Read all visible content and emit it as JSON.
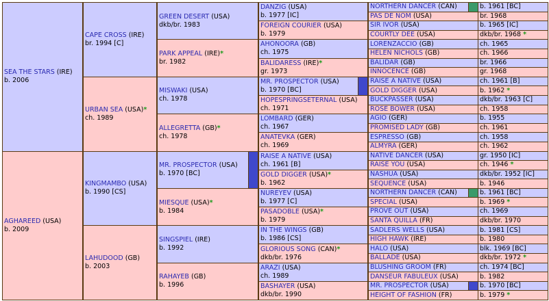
{
  "pedigree": {
    "gen1": [
      {
        "name": "SEA THE STARS",
        "country": "(IRE)",
        "info": "b. 2006"
      },
      {
        "name": "AGHAREED",
        "country": "(USA)",
        "info": "b. 2009"
      }
    ],
    "gen2": [
      {
        "name": "CAPE CROSS",
        "country": "(IRE)",
        "info": "br. 1994 [C]"
      },
      {
        "name": "URBAN SEA",
        "country": "(USA)",
        "mark": "*",
        "info": "ch. 1989"
      },
      {
        "name": "KINGMAMBO",
        "country": "(USA)",
        "info": "b. 1990 [CS]"
      },
      {
        "name": "LAHUDOOD",
        "country": "(GB)",
        "info": "b. 2003"
      }
    ],
    "gen3": [
      {
        "name": "GREEN DESERT",
        "country": "(USA)",
        "info": "dkb/br. 1983"
      },
      {
        "name": "PARK APPEAL",
        "country": "(IRE)",
        "mark": "*",
        "info": "br. 1982"
      },
      {
        "name": "MISWAKI",
        "country": "(USA)",
        "info": "ch. 1978"
      },
      {
        "name": "ALLEGRETTA",
        "country": "(GB)",
        "mark": "*",
        "info": "ch. 1978"
      },
      {
        "name": "MR. PROSPECTOR",
        "country": "(USA)",
        "info": "b. 1970 [BC]",
        "marker": "#3f48cc"
      },
      {
        "name": "MIESQUE",
        "country": "(USA)",
        "mark": "*",
        "info": "b. 1984"
      },
      {
        "name": "SINGSPIEL",
        "country": "(IRE)",
        "info": "b. 1992"
      },
      {
        "name": "RAHAYEB",
        "country": "(GB)",
        "info": "b. 1996"
      }
    ],
    "gen4": [
      {
        "name": "DANZIG",
        "country": "(USA)",
        "info": "b. 1977 [IC]"
      },
      {
        "name": "FOREIGN COURIER",
        "country": "(USA)",
        "info": "b. 1979"
      },
      {
        "name": "AHONOORA",
        "country": "(GB)",
        "info": "ch. 1975"
      },
      {
        "name": "BALIDARESS",
        "country": "(IRE)",
        "mark": "*",
        "info": "gr. 1973"
      },
      {
        "name": "MR. PROSPECTOR",
        "country": "(USA)",
        "info": "b. 1970 [BC]",
        "marker": "#3f48cc"
      },
      {
        "name": "HOPESPRINGSETERNAL",
        "country": "(USA)",
        "info": "ch. 1971"
      },
      {
        "name": "LOMBARD",
        "country": "(GER)",
        "info": "ch. 1967"
      },
      {
        "name": "ANATEVKA",
        "country": "(GER)",
        "info": "ch. 1969"
      },
      {
        "name": "RAISE A NATIVE",
        "country": "(USA)",
        "info": "ch. 1961 [B]"
      },
      {
        "name": "GOLD DIGGER",
        "country": "(USA)",
        "mark": "*",
        "info": "b. 1962"
      },
      {
        "name": "NUREYEV",
        "country": "(USA)",
        "info": "b. 1977 [C]"
      },
      {
        "name": "PASADOBLE",
        "country": "(USA)",
        "mark": "*",
        "info": "b. 1979"
      },
      {
        "name": "IN THE WINGS",
        "country": "(GB)",
        "info": "b. 1986 [CS]"
      },
      {
        "name": "GLORIOUS SONG",
        "country": "(CAN)",
        "mark": "*",
        "info": "dkb/br. 1976"
      },
      {
        "name": "ARAZI",
        "country": "(USA)",
        "info": "ch. 1989"
      },
      {
        "name": "BASHAYER",
        "country": "(USA)",
        "info": "dkb/br. 1990"
      }
    ],
    "gen5": [
      {
        "name": "NORTHERN DANCER",
        "country": "(CAN)",
        "info": "b. 1961 [BC]",
        "marker": "#3a9a6a"
      },
      {
        "name": "PAS DE NOM",
        "country": "(USA)",
        "info": "br. 1968"
      },
      {
        "name": "SIR IVOR",
        "country": "(USA)",
        "info": "b. 1965 [IC]"
      },
      {
        "name": "COURTLY DEE",
        "country": "(USA)",
        "info": "dkb/br. 1968",
        "mark": "*"
      },
      {
        "name": "LORENZACCIO",
        "country": "(GB)",
        "info": "ch. 1965"
      },
      {
        "name": "HELEN NICHOLS",
        "country": "(GB)",
        "info": "ch. 1966"
      },
      {
        "name": "BALIDAR",
        "country": "(GB)",
        "info": "br. 1966"
      },
      {
        "name": "INNOCENCE",
        "country": "(GB)",
        "info": "gr. 1968"
      },
      {
        "name": "RAISE A NATIVE",
        "country": "(USA)",
        "info": "ch. 1961 [B]"
      },
      {
        "name": "GOLD DIGGER",
        "country": "(USA)",
        "info": "b. 1962",
        "mark": "*"
      },
      {
        "name": "BUCKPASSER",
        "country": "(USA)",
        "info": "dkb/br. 1963 [C]"
      },
      {
        "name": "ROSE BOWER",
        "country": "(USA)",
        "info": "ch. 1958"
      },
      {
        "name": "AGIO",
        "country": "(GER)",
        "info": "b. 1955"
      },
      {
        "name": "PROMISED LADY",
        "country": "(GB)",
        "info": "ch. 1961"
      },
      {
        "name": "ESPRESSO",
        "country": "(GB)",
        "info": "ch. 1958"
      },
      {
        "name": "ALMYRA",
        "country": "(GER)",
        "info": "ch. 1962"
      },
      {
        "name": "NATIVE DANCER",
        "country": "(USA)",
        "info": "gr. 1950 [IC]"
      },
      {
        "name": "RAISE YOU",
        "country": "(USA)",
        "info": "ch. 1946",
        "mark": "*"
      },
      {
        "name": "NASHUA",
        "country": "(USA)",
        "info": "dkb/br. 1952 [IC]"
      },
      {
        "name": "SEQUENCE",
        "country": "(USA)",
        "info": "b. 1946"
      },
      {
        "name": "NORTHERN DANCER",
        "country": "(CAN)",
        "info": "b. 1961 [BC]",
        "marker": "#3a9a6a"
      },
      {
        "name": "SPECIAL",
        "country": "(USA)",
        "info": "b. 1969",
        "mark": "*"
      },
      {
        "name": "PROVE OUT",
        "country": "(USA)",
        "info": "ch. 1969"
      },
      {
        "name": "SANTA QUILLA",
        "country": "(FR)",
        "info": "dkb/br. 1970"
      },
      {
        "name": "SADLERS WELLS",
        "country": "(USA)",
        "info": "b. 1981 [CS]"
      },
      {
        "name": "HIGH HAWK",
        "country": "(IRE)",
        "info": "b. 1980"
      },
      {
        "name": "HALO",
        "country": "(USA)",
        "info": "blk. 1969 [BC]"
      },
      {
        "name": "BALLADE",
        "country": "(USA)",
        "info": "dkb/br. 1972",
        "mark": "*"
      },
      {
        "name": "BLUSHING GROOM",
        "country": "(FR)",
        "info": "ch. 1974 [BC]"
      },
      {
        "name": "DANSEUR FABULEUX",
        "country": "(USA)",
        "info": "b. 1982"
      },
      {
        "name": "MR. PROSPECTOR",
        "country": "(USA)",
        "info": "b. 1970 [BC]",
        "marker": "#3f48cc"
      },
      {
        "name": "HEIGHT OF FASHION",
        "country": "(FR)",
        "info": "b. 1979",
        "mark": "*"
      }
    ]
  }
}
